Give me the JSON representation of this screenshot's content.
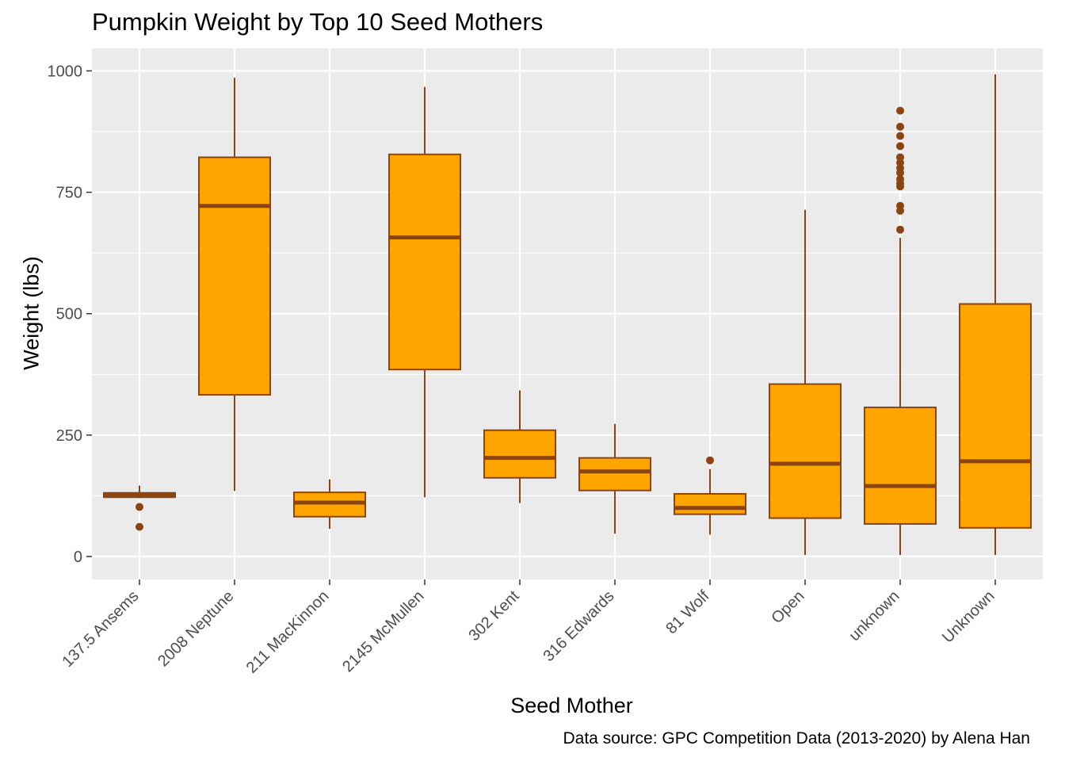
{
  "chart_data": {
    "type": "box",
    "title": "Pumpkin Weight by Top 10 Seed Mothers",
    "xlabel": "Seed Mother",
    "ylabel": "Weight (lbs)",
    "caption": "Data source: GPC Competition Data (2013-2020) by Alena Han",
    "ylim": [
      -50,
      1050
    ],
    "yticks": [
      0,
      250,
      500,
      750,
      1000
    ],
    "grid": true,
    "legend": "none",
    "colors": {
      "fill": "#FFA500",
      "stroke": "#8B4513",
      "panel": "#EBEBEB",
      "grid": "#FFFFFF"
    },
    "categories": [
      "137.5 Ansems",
      "2008 Neptune",
      "211 MacKinnon",
      "2145 McMullen",
      "302 Kent",
      "316 Edwards",
      "81 Wolf",
      "Open",
      "unknown",
      "Unknown"
    ],
    "boxes": [
      {
        "min": 120,
        "q1": 122,
        "median": 126,
        "q3": 131,
        "max": 146,
        "outliers": [
          102,
          61
        ]
      },
      {
        "min": 135,
        "q1": 333,
        "median": 722,
        "q3": 822,
        "max": 986,
        "outliers": []
      },
      {
        "min": 57,
        "q1": 82,
        "median": 111,
        "q3": 132,
        "max": 159,
        "outliers": []
      },
      {
        "min": 122,
        "q1": 385,
        "median": 657,
        "q3": 828,
        "max": 967,
        "outliers": []
      },
      {
        "min": 110,
        "q1": 162,
        "median": 203,
        "q3": 260,
        "max": 342,
        "outliers": []
      },
      {
        "min": 47,
        "q1": 136,
        "median": 175,
        "q3": 203,
        "max": 273,
        "outliers": []
      },
      {
        "min": 45,
        "q1": 87,
        "median": 100,
        "q3": 129,
        "max": 180,
        "outliers": [
          198
        ]
      },
      {
        "min": 3,
        "q1": 79,
        "median": 191,
        "q3": 355,
        "max": 714,
        "outliers": []
      },
      {
        "min": 3,
        "q1": 67,
        "median": 145,
        "q3": 307,
        "max": 656,
        "outliers": [
          673,
          712,
          722,
          762,
          768,
          777,
          790,
          800,
          811,
          822,
          845,
          866,
          885,
          918
        ]
      },
      {
        "min": 3,
        "q1": 59,
        "median": 196,
        "q3": 520,
        "max": 993,
        "outliers": []
      }
    ]
  }
}
